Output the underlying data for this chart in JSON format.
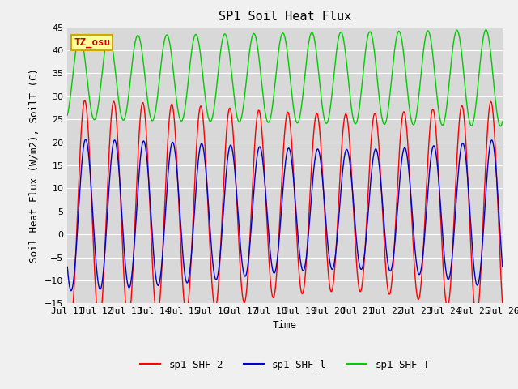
{
  "title": "SP1 Soil Heat Flux",
  "xlabel": "Time",
  "ylabel": "Soil Heat Flux (W/m2), SoilT (C)",
  "xlim_start": 0,
  "xlim_end": 15,
  "ylim": [
    -15,
    45
  ],
  "yticks": [
    -15,
    -10,
    -5,
    0,
    5,
    10,
    15,
    20,
    25,
    30,
    35,
    40,
    45
  ],
  "xtick_labels": [
    "Jul 11",
    "Jul 12",
    "Jul 13",
    "Jul 14",
    "Jul 15",
    "Jul 16",
    "Jul 17",
    "Jul 18",
    "Jul 19",
    "Jul 20",
    "Jul 21",
    "Jul 22",
    "Jul 23",
    "Jul 24",
    "Jul 25",
    "Jul 26"
  ],
  "xtick_positions": [
    0,
    1,
    2,
    3,
    4,
    5,
    6,
    7,
    8,
    9,
    10,
    11,
    12,
    13,
    14,
    15
  ],
  "legend_labels": [
    "sp1_SHF_2",
    "sp1_SHF_l",
    "sp1_SHF_T"
  ],
  "legend_colors": [
    "#ff0000",
    "#0000cc",
    "#00cc00"
  ],
  "annotation_text": "TZ_osu",
  "annotation_color": "#cc0000",
  "annotation_bg": "#ffff99",
  "annotation_border": "#ccaa00",
  "grid_color": "#ffffff",
  "bg_color": "#d8d8d8",
  "fig_bg_color": "#f0f0f0",
  "title_fontsize": 11,
  "axis_fontsize": 9,
  "tick_fontsize": 8,
  "legend_fontsize": 9
}
